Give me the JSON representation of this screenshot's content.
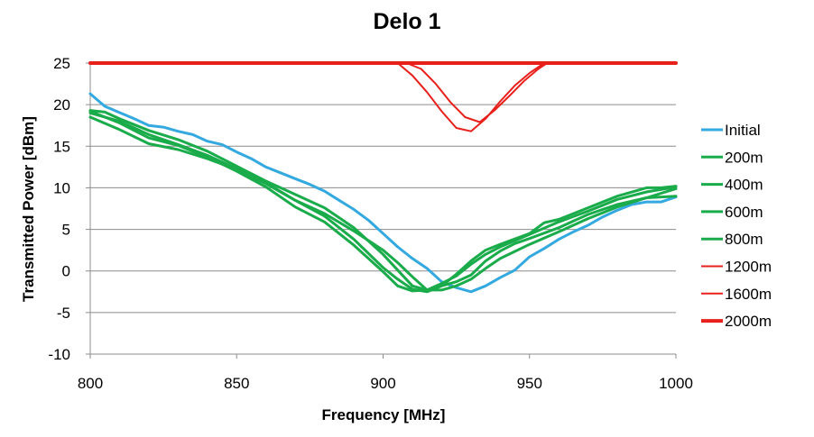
{
  "chart_data": {
    "type": "line",
    "title": "Delo 1",
    "xlabel": "Frequency [MHz]",
    "ylabel": "Transmitted Power [dBm]",
    "xlim": [
      800,
      1000
    ],
    "ylim": [
      -10,
      25
    ],
    "xticks": [
      800,
      850,
      900,
      950,
      1000
    ],
    "yticks": [
      -10,
      -5,
      0,
      5,
      10,
      15,
      20,
      25
    ],
    "grid": "horizontal",
    "legend_position": "right",
    "series": [
      {
        "name": "Initial",
        "color": "#33a9e0",
        "width": 3,
        "x": [
          800,
          805,
          815,
          820,
          825,
          830,
          835,
          840,
          845,
          850,
          855,
          860,
          865,
          870,
          875,
          880,
          885,
          890,
          895,
          900,
          905,
          910,
          915,
          920,
          925,
          930,
          935,
          940,
          945,
          950,
          955,
          960,
          965,
          970,
          975,
          980,
          985,
          990,
          995,
          1000
        ],
        "y": [
          21.3,
          19.8,
          18.3,
          17.5,
          17.3,
          16.8,
          16.4,
          15.6,
          15.2,
          14.3,
          13.5,
          12.5,
          11.8,
          11.1,
          10.4,
          9.6,
          8.5,
          7.4,
          6.1,
          4.5,
          2.9,
          1.5,
          0.3,
          -1.3,
          -2.0,
          -2.5,
          -1.8,
          -0.8,
          0.1,
          1.7,
          2.7,
          3.8,
          4.7,
          5.5,
          6.5,
          7.3,
          8.0,
          8.3,
          8.3,
          8.9
        ]
      },
      {
        "name": "200m",
        "color": "#1aab4b",
        "width": 3,
        "x": [
          800,
          805,
          810,
          820,
          830,
          840,
          850,
          860,
          870,
          880,
          890,
          900,
          905,
          910,
          915,
          920,
          925,
          930,
          935,
          940,
          950,
          960,
          970,
          980,
          990,
          1000
        ],
        "y": [
          19.3,
          19.1,
          18.3,
          16.9,
          15.8,
          14.4,
          12.6,
          10.8,
          9.2,
          7.6,
          5.2,
          2.0,
          0.1,
          -1.8,
          -2.3,
          -1.5,
          -0.6,
          0.8,
          2.0,
          2.9,
          4.4,
          5.9,
          7.2,
          8.6,
          9.5,
          10.1
        ]
      },
      {
        "name": "400m",
        "color": "#1aab4b",
        "width": 3,
        "x": [
          800,
          810,
          820,
          830,
          840,
          850,
          860,
          870,
          880,
          890,
          900,
          905,
          910,
          915,
          920,
          925,
          930,
          935,
          940,
          950,
          960,
          970,
          980,
          990,
          1000
        ],
        "y": [
          18.5,
          17.0,
          15.3,
          14.6,
          13.5,
          12.2,
          10.5,
          8.5,
          6.9,
          4.8,
          2.5,
          1.0,
          -0.7,
          -2.3,
          -2.3,
          -1.8,
          -1.0,
          0.3,
          1.5,
          3.2,
          4.7,
          6.3,
          7.7,
          8.8,
          9.9
        ]
      },
      {
        "name": "600m",
        "color": "#1aab4b",
        "width": 3,
        "x": [
          800,
          810,
          820,
          830,
          840,
          850,
          860,
          870,
          880,
          890,
          900,
          905,
          910,
          915,
          920,
          925,
          930,
          935,
          940,
          950,
          955,
          960,
          970,
          980,
          990,
          995,
          1000
        ],
        "y": [
          19.0,
          18.0,
          16.4,
          15.2,
          13.9,
          12.3,
          10.6,
          8.5,
          6.6,
          3.8,
          0.4,
          -1.0,
          -2.2,
          -2.5,
          -1.8,
          -0.4,
          1.2,
          2.5,
          3.2,
          4.5,
          5.8,
          6.2,
          7.6,
          9.0,
          10.0,
          10.0,
          10.2
        ]
      },
      {
        "name": "800m",
        "color": "#1aab4b",
        "width": 3,
        "x": [
          800,
          810,
          820,
          830,
          840,
          850,
          860,
          870,
          880,
          890,
          900,
          905,
          910,
          915,
          920,
          925,
          930,
          935,
          940,
          945,
          950,
          960,
          970,
          980,
          990,
          1000
        ],
        "y": [
          19.2,
          17.8,
          16.0,
          15.1,
          13.7,
          12.0,
          10.1,
          7.7,
          5.9,
          3.1,
          -0.1,
          -1.8,
          -2.4,
          -2.3,
          -1.8,
          -1.3,
          -0.5,
          1.2,
          2.4,
          3.3,
          3.9,
          5.2,
          6.8,
          8.0,
          8.8,
          9.0
        ]
      },
      {
        "name": "1200m",
        "color": "#e8201c",
        "width": 2,
        "x": [
          800,
          905,
          910,
          915,
          920,
          925,
          930,
          935,
          940,
          945,
          950,
          955,
          960,
          1000
        ],
        "y": [
          25,
          25,
          23.5,
          21.5,
          19.2,
          17.2,
          16.8,
          18.3,
          20.4,
          22.3,
          23.8,
          25,
          25,
          25
        ]
      },
      {
        "name": "1600m",
        "color": "#e8201c",
        "width": 2,
        "x": [
          800,
          908,
          913,
          918,
          923,
          928,
          933,
          938,
          943,
          948,
          953,
          956,
          960,
          1000
        ],
        "y": [
          25,
          25,
          24.3,
          22.5,
          20.3,
          18.5,
          17.9,
          19.3,
          21.0,
          22.8,
          24.3,
          25,
          25,
          25
        ]
      },
      {
        "name": "2000m",
        "color": "#e8201c",
        "width": 4,
        "x": [
          800,
          1000
        ],
        "y": [
          25,
          25
        ]
      }
    ]
  }
}
